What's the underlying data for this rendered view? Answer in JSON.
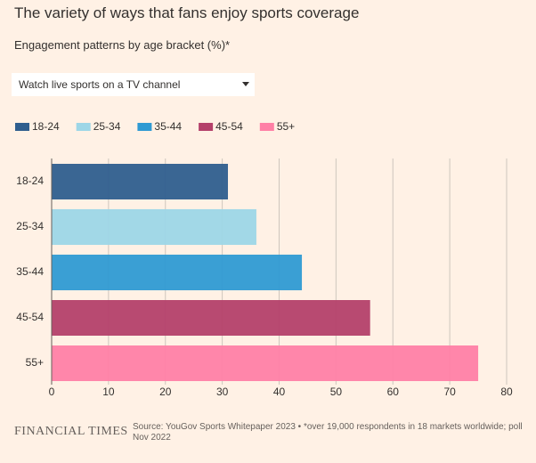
{
  "chart_data": {
    "type": "bar",
    "orientation": "horizontal",
    "title": "The variety of ways that fans enjoy sports coverage",
    "subtitle": "Engagement patterns by age bracket (%)*",
    "selector": "Watch live sports on a TV channel",
    "categories": [
      "18-24",
      "25-34",
      "35-44",
      "45-54",
      "55+"
    ],
    "values": [
      31,
      36,
      44,
      56,
      75
    ],
    "colors": [
      "#2f5e8e",
      "#9dd6e7",
      "#2f9ad3",
      "#b4406a",
      "#ff80a6"
    ],
    "xlim": [
      0,
      80
    ],
    "xticks": [
      0,
      10,
      20,
      30,
      40,
      50,
      60,
      70,
      80
    ],
    "grid": true,
    "source": "Source: YouGov Sports Whitepaper 2023 • *over 19,000 respondents in 18 markets worldwide; poll Nov 2022",
    "brand": "FINANCIAL TIMES"
  }
}
